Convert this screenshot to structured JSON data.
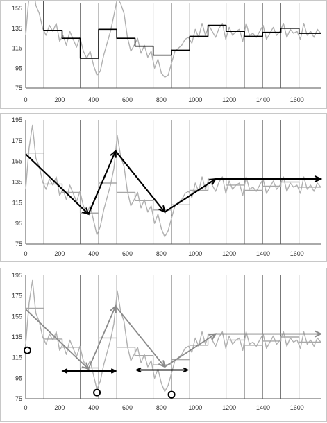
{
  "chart_data": [
    {
      "type": "line",
      "title": "",
      "xlim": [
        0,
        1740
      ],
      "ylim": [
        75,
        160
      ],
      "x_ticks": [
        "0",
        "200",
        "400",
        "600",
        "800",
        "1000",
        "1200",
        "1400",
        "1600"
      ],
      "y_ticks": [
        "75",
        "95",
        "115",
        "135",
        "155"
      ],
      "grid": "vertical",
      "vertical_lines": [
        107,
        215,
        322,
        430,
        537,
        645,
        752,
        860,
        967,
        1075,
        1182,
        1290,
        1397,
        1505,
        1612
      ],
      "series": [
        {
          "style": "gray-noisy",
          "x": [
            0,
            20,
            40,
            60,
            80,
            100,
            120,
            140,
            160,
            180,
            200,
            220,
            240,
            260,
            280,
            300,
            320,
            340,
            360,
            380,
            400,
            420,
            440,
            460,
            480,
            500,
            520,
            540,
            560,
            580,
            600,
            620,
            640,
            660,
            680,
            700,
            720,
            740,
            760,
            780,
            800,
            820,
            840,
            860,
            880,
            900,
            920,
            940,
            960,
            980,
            1000,
            1020,
            1040,
            1060,
            1080,
            1100,
            1120,
            1140,
            1160,
            1180,
            1200,
            1220,
            1240,
            1260,
            1280,
            1300,
            1320,
            1340,
            1360,
            1380,
            1400,
            1420,
            1440,
            1460,
            1480,
            1500,
            1520,
            1540,
            1560,
            1580,
            1600,
            1620,
            1640,
            1660,
            1680,
            1700,
            1720,
            1740
          ],
          "y": [
            128,
            168,
            180,
            158,
            150,
            135,
            128,
            138,
            132,
            140,
            122,
            128,
            118,
            132,
            124,
            116,
            126,
            112,
            105,
            112,
            98,
            88,
            92,
            108,
            120,
            132,
            148,
            165,
            160,
            150,
            126,
            112,
            118,
            125,
            110,
            118,
            106,
            112,
            95,
            104,
            90,
            86,
            88,
            100,
            112,
            115,
            118,
            124,
            126,
            120,
            134,
            126,
            140,
            128,
            138,
            132,
            126,
            135,
            140,
            124,
            136,
            128,
            132,
            134,
            122,
            140,
            128,
            130,
            126,
            132,
            138,
            124,
            130,
            136,
            128,
            132,
            140,
            126,
            134,
            130,
            132,
            124,
            140,
            128,
            132,
            126,
            134,
            130
          ]
        },
        {
          "style": "black-step",
          "x": [
            0,
            107,
            107,
            215,
            215,
            322,
            322,
            430,
            430,
            537,
            537,
            645,
            645,
            752,
            752,
            860,
            860,
            967,
            967,
            1075,
            1075,
            1182,
            1182,
            1290,
            1290,
            1397,
            1397,
            1505,
            1505,
            1612,
            1612,
            1740
          ],
          "y": [
            163,
            163,
            133,
            133,
            125,
            125,
            105,
            105,
            134,
            134,
            125,
            125,
            117,
            117,
            108,
            108,
            113,
            113,
            127,
            127,
            138,
            138,
            132,
            132,
            127,
            127,
            131,
            131,
            135,
            135,
            130,
            130
          ]
        }
      ]
    },
    {
      "type": "line",
      "title": "",
      "xlim": [
        0,
        1740
      ],
      "ylim": [
        75,
        195
      ],
      "x_ticks": [
        "0",
        "200",
        "400",
        "600",
        "800",
        "1000",
        "1200",
        "1400",
        "1600"
      ],
      "y_ticks": [
        "75",
        "95",
        "115",
        "135",
        "155",
        "175",
        "195"
      ],
      "grid": "vertical",
      "vertical_lines": [
        107,
        215,
        322,
        430,
        537,
        645,
        752,
        860,
        967,
        1075,
        1182,
        1290,
        1397,
        1505,
        1612
      ],
      "series": [
        {
          "style": "gray-noisy",
          "x": [
            0,
            20,
            40,
            60,
            80,
            100,
            120,
            140,
            160,
            180,
            200,
            220,
            240,
            260,
            280,
            300,
            320,
            340,
            360,
            380,
            400,
            420,
            440,
            460,
            480,
            500,
            520,
            540,
            560,
            580,
            600,
            620,
            640,
            660,
            680,
            700,
            720,
            740,
            760,
            780,
            800,
            820,
            840,
            860,
            880,
            900,
            920,
            940,
            960,
            980,
            1000,
            1020,
            1040,
            1060,
            1080,
            1100,
            1120,
            1140,
            1160,
            1180,
            1200,
            1220,
            1240,
            1260,
            1280,
            1300,
            1320,
            1340,
            1360,
            1380,
            1400,
            1420,
            1440,
            1460,
            1480,
            1500,
            1520,
            1540,
            1560,
            1580,
            1600,
            1620,
            1640,
            1660,
            1680,
            1700,
            1720,
            1740
          ],
          "y": [
            128,
            168,
            190,
            158,
            150,
            135,
            128,
            138,
            132,
            140,
            122,
            128,
            118,
            132,
            124,
            116,
            126,
            112,
            105,
            112,
            98,
            84,
            92,
            108,
            120,
            132,
            148,
            180,
            160,
            150,
            126,
            112,
            118,
            125,
            110,
            118,
            106,
            112,
            95,
            104,
            90,
            82,
            88,
            100,
            112,
            115,
            118,
            124,
            126,
            120,
            134,
            126,
            140,
            128,
            138,
            132,
            126,
            135,
            140,
            124,
            136,
            128,
            132,
            134,
            122,
            140,
            128,
            130,
            126,
            132,
            138,
            124,
            130,
            136,
            128,
            132,
            140,
            126,
            134,
            130,
            132,
            124,
            140,
            128,
            132,
            126,
            134,
            130
          ]
        },
        {
          "style": "gray-step",
          "x": [
            0,
            107,
            107,
            215,
            215,
            322,
            322,
            430,
            430,
            537,
            537,
            645,
            645,
            752,
            752,
            860,
            860,
            967,
            967,
            1075,
            1075,
            1182,
            1182,
            1290,
            1290,
            1397,
            1397,
            1505,
            1505,
            1612,
            1612,
            1740
          ],
          "y": [
            163,
            163,
            133,
            133,
            125,
            125,
            105,
            105,
            134,
            134,
            125,
            125,
            117,
            117,
            108,
            108,
            113,
            113,
            127,
            127,
            138,
            138,
            132,
            132,
            127,
            127,
            131,
            131,
            135,
            135,
            130,
            130
          ]
        },
        {
          "style": "black-arrows",
          "segments": [
            {
              "x": [
                0,
                370
              ],
              "y": [
                162,
                104
              ]
            },
            {
              "x": [
                370,
                530
              ],
              "y": [
                104,
                165
              ]
            },
            {
              "x": [
                530,
                820
              ],
              "y": [
                165,
                106
              ]
            },
            {
              "x": [
                820,
                1120
              ],
              "y": [
                106,
                138
              ]
            },
            {
              "x": [
                1120,
                1740
              ],
              "y": [
                138,
                138
              ]
            }
          ]
        }
      ]
    },
    {
      "type": "line",
      "title": "",
      "xlim": [
        0,
        1740
      ],
      "ylim": [
        75,
        195
      ],
      "x_ticks": [
        "0",
        "200",
        "400",
        "600",
        "800",
        "1000",
        "1200",
        "1400",
        "1600"
      ],
      "y_ticks": [
        "75",
        "95",
        "115",
        "135",
        "155",
        "175",
        "195"
      ],
      "grid": "vertical",
      "vertical_lines": [
        107,
        215,
        322,
        430,
        537,
        645,
        752,
        860,
        967,
        1075,
        1182,
        1290,
        1397,
        1505,
        1612
      ],
      "series": [
        {
          "style": "gray-noisy",
          "x": [
            0,
            20,
            40,
            60,
            80,
            100,
            120,
            140,
            160,
            180,
            200,
            220,
            240,
            260,
            280,
            300,
            320,
            340,
            360,
            380,
            400,
            420,
            440,
            460,
            480,
            500,
            520,
            540,
            560,
            580,
            600,
            620,
            640,
            660,
            680,
            700,
            720,
            740,
            760,
            780,
            800,
            820,
            840,
            860,
            880,
            900,
            920,
            940,
            960,
            980,
            1000,
            1020,
            1040,
            1060,
            1080,
            1100,
            1120,
            1140,
            1160,
            1180,
            1200,
            1220,
            1240,
            1260,
            1280,
            1300,
            1320,
            1340,
            1360,
            1380,
            1400,
            1420,
            1440,
            1460,
            1480,
            1500,
            1520,
            1540,
            1560,
            1580,
            1600,
            1620,
            1640,
            1660,
            1680,
            1700,
            1720,
            1740
          ],
          "y": [
            128,
            168,
            190,
            158,
            150,
            135,
            128,
            138,
            132,
            140,
            122,
            128,
            118,
            132,
            124,
            116,
            126,
            112,
            105,
            112,
            98,
            84,
            92,
            108,
            120,
            132,
            148,
            180,
            160,
            150,
            126,
            112,
            118,
            125,
            110,
            118,
            106,
            112,
            95,
            104,
            90,
            82,
            88,
            100,
            112,
            115,
            118,
            124,
            126,
            120,
            134,
            126,
            140,
            128,
            138,
            132,
            126,
            135,
            140,
            124,
            136,
            128,
            132,
            134,
            122,
            140,
            128,
            130,
            126,
            132,
            138,
            124,
            130,
            136,
            128,
            132,
            140,
            126,
            134,
            130,
            132,
            124,
            140,
            128,
            132,
            126,
            134,
            130
          ]
        },
        {
          "style": "gray-step",
          "x": [
            0,
            107,
            107,
            215,
            215,
            322,
            322,
            430,
            430,
            537,
            537,
            645,
            645,
            752,
            752,
            860,
            860,
            967,
            967,
            1075,
            1075,
            1182,
            1182,
            1290,
            1290,
            1397,
            1397,
            1505,
            1505,
            1612,
            1612,
            1740
          ],
          "y": [
            163,
            163,
            133,
            133,
            125,
            125,
            105,
            105,
            134,
            134,
            125,
            125,
            117,
            117,
            108,
            108,
            113,
            113,
            127,
            127,
            138,
            138,
            132,
            132,
            127,
            127,
            131,
            131,
            135,
            135,
            130,
            130
          ]
        },
        {
          "style": "gray-arrows",
          "segments": [
            {
              "x": [
                0,
                370
              ],
              "y": [
                162,
                104
              ]
            },
            {
              "x": [
                370,
                530
              ],
              "y": [
                104,
                165
              ]
            },
            {
              "x": [
                530,
                820
              ],
              "y": [
                165,
                106
              ]
            },
            {
              "x": [
                820,
                1120
              ],
              "y": [
                106,
                138
              ]
            },
            {
              "x": [
                1120,
                1740
              ],
              "y": [
                138,
                138
              ]
            }
          ]
        },
        {
          "style": "black-double-arrows",
          "segments": [
            {
              "x": [
                220,
                530
              ],
              "y": [
                102,
                102
              ]
            },
            {
              "x": [
                655,
                955
              ],
              "y": [
                103,
                103
              ]
            }
          ]
        },
        {
          "style": "black-circles",
          "points": [
            {
              "x": 10,
              "y": 122
            },
            {
              "x": 420,
              "y": 81
            },
            {
              "x": 860,
              "y": 79
            }
          ]
        }
      ]
    }
  ],
  "colors": {
    "noisy": "#b0b0b0",
    "step_gray": "#a8a8a8",
    "arrow_gray": "#8a8a8a",
    "black": "#000000",
    "grid": "#555555",
    "border": "#c8c8c8"
  }
}
